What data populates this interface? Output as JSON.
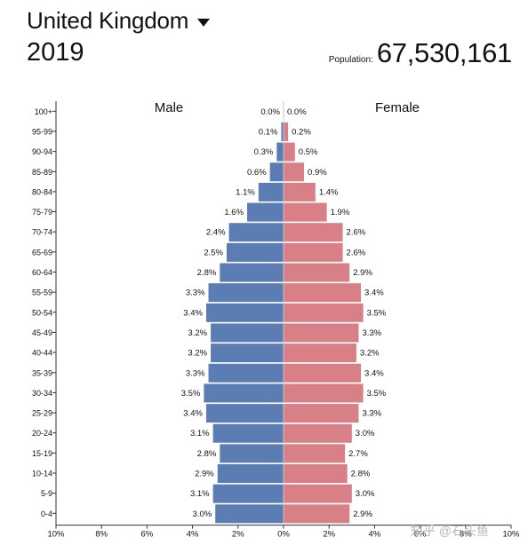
{
  "header": {
    "country": "United Kingdom",
    "year": "2019",
    "population_label": "Population:",
    "population_value": "67,530,161"
  },
  "watermark": "知乎 @石头鱼",
  "colors": {
    "male": "#5b7db4",
    "female": "#d97f88",
    "axis": "#333333"
  },
  "chart_data": {
    "type": "bar",
    "orientation": "horizontal",
    "title": "",
    "categories": [
      "100+",
      "95-99",
      "90-94",
      "85-89",
      "80-84",
      "75-79",
      "70-74",
      "65-69",
      "60-64",
      "55-59",
      "50-54",
      "45-49",
      "40-44",
      "35-39",
      "30-34",
      "25-29",
      "20-24",
      "15-19",
      "10-14",
      "5-9",
      "0-4"
    ],
    "series": [
      {
        "name": "Male",
        "values": [
          0.0,
          0.1,
          0.3,
          0.6,
          1.1,
          1.6,
          2.4,
          2.5,
          2.8,
          3.3,
          3.4,
          3.2,
          3.2,
          3.3,
          3.5,
          3.4,
          3.1,
          2.8,
          2.9,
          3.1,
          3.0
        ],
        "labels": [
          "0.0%",
          "0.1%",
          "0.3%",
          "0.6%",
          "1.1%",
          "1.6%",
          "2.4%",
          "2.5%",
          "2.8%",
          "3.3%",
          "3.4%",
          "3.2%",
          "3.2%",
          "3.3%",
          "3.5%",
          "3.4%",
          "3.1%",
          "2.8%",
          "2.9%",
          "3.1%",
          "3.0%"
        ]
      },
      {
        "name": "Female",
        "values": [
          0.0,
          0.2,
          0.5,
          0.9,
          1.4,
          1.9,
          2.6,
          2.6,
          2.9,
          3.4,
          3.5,
          3.3,
          3.2,
          3.4,
          3.5,
          3.3,
          3.0,
          2.7,
          2.8,
          3.0,
          2.9
        ],
        "labels": [
          "0.0%",
          "0.2%",
          "0.5%",
          "0.9%",
          "1.4%",
          "1.9%",
          "2.6%",
          "2.6%",
          "2.9%",
          "3.4%",
          "3.5%",
          "3.3%",
          "3.2%",
          "3.4%",
          "3.5%",
          "3.3%",
          "3.0%",
          "2.7%",
          "2.8%",
          "3.0%",
          "2.9%"
        ]
      }
    ],
    "xlim": [
      -10,
      10
    ],
    "xticks": [
      -10,
      -8,
      -6,
      -4,
      -2,
      0,
      2,
      4,
      6,
      8,
      10
    ],
    "xtick_labels": [
      "10%",
      "8%",
      "6%",
      "4%",
      "2%",
      "0%",
      "2%",
      "4%",
      "6%",
      "8%",
      "10%"
    ],
    "grid": false,
    "legend": "top"
  }
}
